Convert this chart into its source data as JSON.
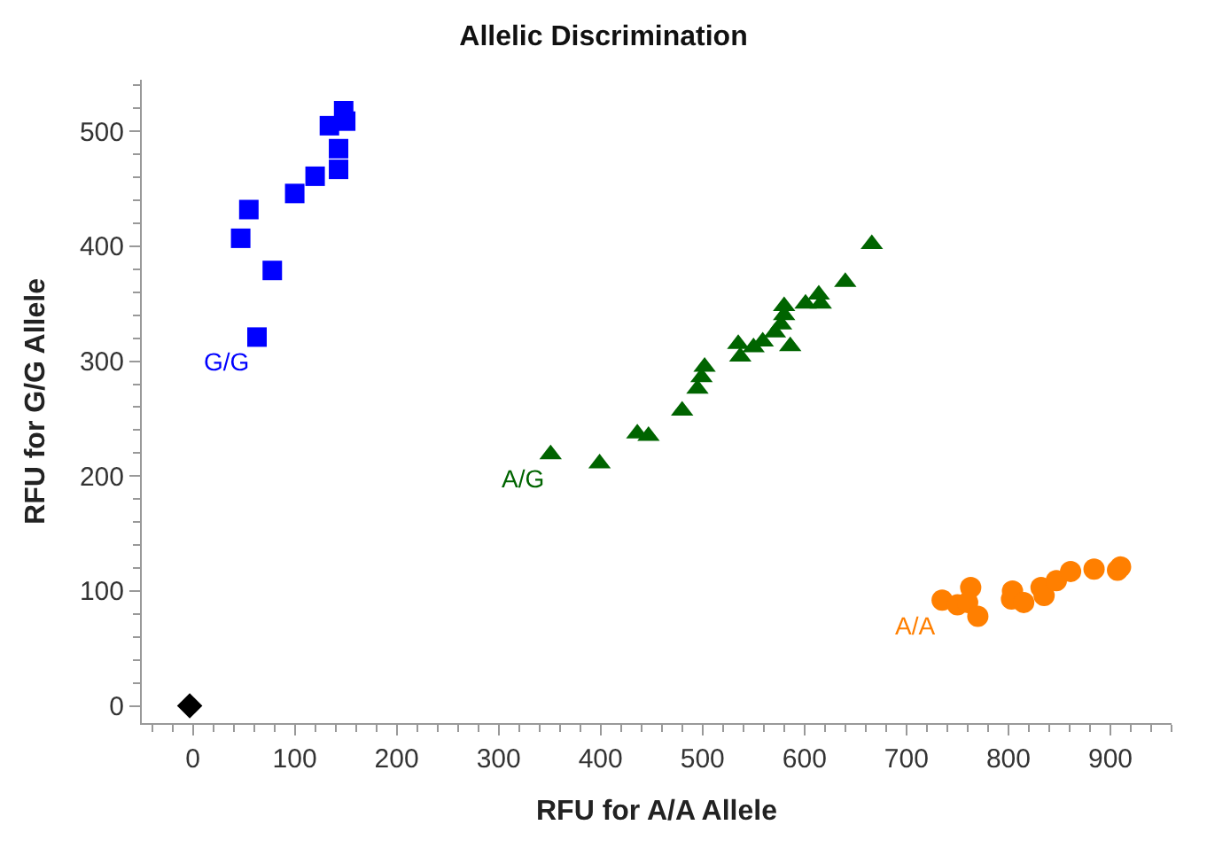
{
  "chart_data": {
    "type": "scatter",
    "title": "Allelic Discrimination",
    "xlabel": "RFU for A/A Allele",
    "ylabel": "RFU for G/G Allele",
    "xlim": [
      -50,
      960
    ],
    "ylim": [
      -15,
      545
    ],
    "xticks": [
      0,
      100,
      200,
      300,
      400,
      500,
      600,
      700,
      800,
      900
    ],
    "yticks": [
      0,
      100,
      200,
      300,
      400,
      500
    ],
    "series": [
      {
        "name": "G/G",
        "marker": "square",
        "color": "#0000ff",
        "x": [
          148,
          150,
          134,
          143,
          143,
          120,
          100,
          55,
          47,
          78,
          63
        ],
        "values": [
          518,
          509,
          505,
          485,
          467,
          461,
          446,
          432,
          407,
          379,
          321
        ]
      },
      {
        "name": "A/G",
        "marker": "triangle",
        "color": "#006400",
        "x": [
          666,
          640,
          614,
          616,
          601,
          580,
          580,
          577,
          571,
          586,
          559,
          550,
          535,
          537,
          502,
          499,
          495,
          480,
          447,
          436,
          399,
          351
        ],
        "values": [
          402,
          369,
          358,
          350,
          350,
          348,
          340,
          332,
          325,
          313,
          317,
          312,
          315,
          304,
          295,
          286,
          276,
          257,
          235,
          237,
          211,
          219
        ]
      },
      {
        "name": "A/A",
        "marker": "circle",
        "color": "#ff7f00",
        "x": [
          735,
          750,
          763,
          760,
          770,
          804,
          803,
          815,
          832,
          835,
          847,
          861,
          884,
          907,
          910
        ],
        "values": [
          92,
          88,
          103,
          90,
          78,
          100,
          93,
          90,
          103,
          96,
          109,
          117,
          119,
          118,
          121
        ]
      },
      {
        "marker": "diamond",
        "color": "#000000",
        "x": [
          -3
        ],
        "values": [
          0
        ]
      }
    ]
  }
}
